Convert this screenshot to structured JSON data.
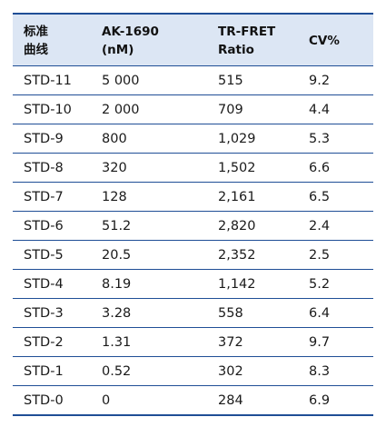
{
  "table": {
    "headers": [
      [
        "标准",
        "曲线"
      ],
      [
        "AK-1690",
        "(nM)"
      ],
      [
        "TR-FRET",
        "Ratio"
      ],
      [
        "CV%"
      ]
    ],
    "rows": [
      [
        "STD-11",
        "5 000",
        "515",
        "9.2"
      ],
      [
        "STD-10",
        "2 000",
        "709",
        "4.4"
      ],
      [
        "STD-9",
        "800",
        "1,029",
        "5.3"
      ],
      [
        "STD-8",
        "320",
        "1,502",
        "6.6"
      ],
      [
        "STD-7",
        "128",
        "2,161",
        "6.5"
      ],
      [
        "STD-6",
        "51.2",
        "2,820",
        "2.4"
      ],
      [
        "STD-5",
        "20.5",
        "2,352",
        "2.5"
      ],
      [
        "STD-4",
        "8.19",
        "1,142",
        "5.2"
      ],
      [
        "STD-3",
        "3.28",
        "558",
        "6.4"
      ],
      [
        "STD-2",
        "1.31",
        "372",
        "9.7"
      ],
      [
        "STD-1",
        "0.52",
        "302",
        "8.3"
      ],
      [
        "STD-0",
        "0",
        "284",
        "6.9"
      ]
    ]
  },
  "colors": {
    "rule": "#1f4e96",
    "header_bg": "#dce6f4"
  }
}
